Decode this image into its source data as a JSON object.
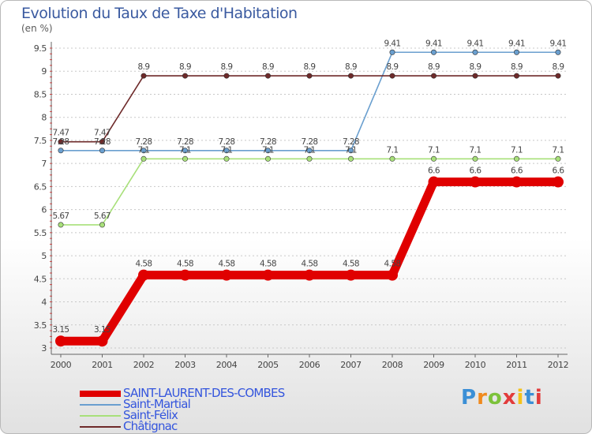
{
  "chart_data": {
    "type": "line",
    "title": "Evolution du Taux de Taxe d'Habitation",
    "ylabel": "(en %)",
    "x": [
      "2000",
      "2001",
      "2002",
      "2003",
      "2004",
      "2005",
      "2006",
      "2007",
      "2008",
      "2009",
      "2010",
      "2011",
      "2012"
    ],
    "ylim": [
      3,
      9.5
    ],
    "yticks": [
      "3",
      "3.5",
      "4",
      "4.5",
      "5",
      "5.5",
      "6",
      "6.5",
      "7",
      "7.5",
      "8",
      "8.5",
      "9",
      "9.5"
    ],
    "grid": "horizontal-dashed",
    "legend_position": "bottom-left",
    "series": [
      {
        "name": "SAINT-LAURENT-DES-COMBES",
        "color": "#e00000",
        "labels": [
          "3.15",
          "3.15",
          "4.58",
          "4.58",
          "4.58",
          "4.58",
          "4.58",
          "4.58",
          "4.58",
          "6.6",
          "6.6",
          "6.6",
          "6.6"
        ],
        "values": [
          3.15,
          3.15,
          4.58,
          4.58,
          4.58,
          4.58,
          4.58,
          4.58,
          4.58,
          6.6,
          6.6,
          6.6,
          6.6
        ]
      },
      {
        "name": "Saint-Martial",
        "color": "#6a9fcf",
        "labels": [
          "7.28",
          "7.28",
          "7.28",
          "7.28",
          "7.28",
          "7.28",
          "7.28",
          "7.28",
          "9.41",
          "9.41",
          "9.41",
          "9.41",
          "9.41"
        ],
        "values": [
          7.28,
          7.28,
          7.28,
          7.28,
          7.28,
          7.28,
          7.28,
          7.28,
          9.41,
          9.41,
          9.41,
          9.41,
          9.41
        ]
      },
      {
        "name": "Saint-Félix",
        "color": "#a8e07a",
        "labels": [
          "5.67",
          "5.67",
          "7.1",
          "7.1",
          "7.1",
          "7.1",
          "7.1",
          "7.1",
          "7.1",
          "7.1",
          "7.1",
          "7.1",
          "7.1"
        ],
        "values": [
          5.67,
          5.67,
          7.1,
          7.1,
          7.1,
          7.1,
          7.1,
          7.1,
          7.1,
          7.1,
          7.1,
          7.1,
          7.1
        ]
      },
      {
        "name": "Châtignac",
        "color": "#6e2a2a",
        "labels": [
          "7.47",
          "7.47",
          "8.9",
          "8.9",
          "8.9",
          "8.9",
          "8.9",
          "8.9",
          "8.9",
          "8.9",
          "8.9",
          "8.9",
          "8.9"
        ],
        "values": [
          7.47,
          7.47,
          8.9,
          8.9,
          8.9,
          8.9,
          8.9,
          8.9,
          8.9,
          8.9,
          8.9,
          8.9,
          8.9
        ]
      }
    ]
  },
  "logo": {
    "text": "Proxiti"
  }
}
